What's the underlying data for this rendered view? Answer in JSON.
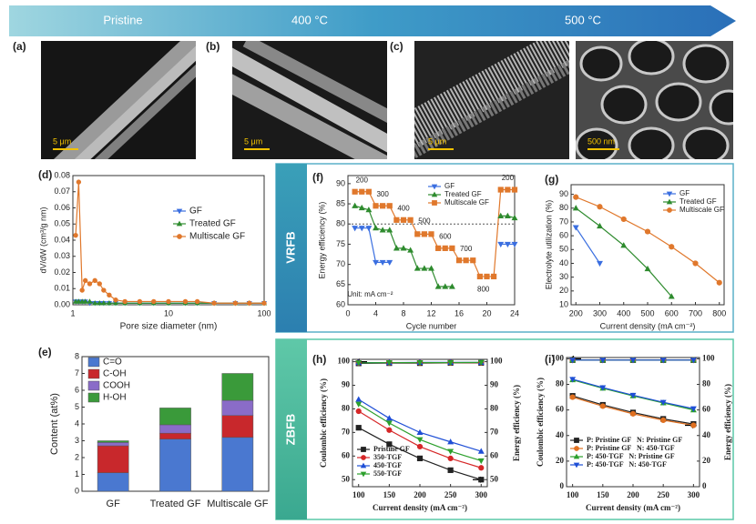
{
  "arrow": {
    "labels": [
      "Pristine",
      "400 °C",
      "500 °C"
    ]
  },
  "sem_images": [
    {
      "panel": "(a)",
      "scale_bar": "5 μm"
    },
    {
      "panel": "(b)",
      "scale_bar": "5 μm"
    },
    {
      "panel": "(c)",
      "scale_bar": "5 μm"
    },
    {
      "scale_bar": "500 nm"
    }
  ],
  "sections": [
    "VRFB",
    "ZBFB"
  ],
  "chart_data": [
    {
      "type": "line",
      "panel": "(d)",
      "xlabel": "Pore size diameter (nm)",
      "ylabel": "dV/dW (cm³/g nm)",
      "xlog": true,
      "x": [
        1.07,
        1.15,
        1.25,
        1.35,
        1.5,
        1.7,
        1.9,
        2.1,
        2.4,
        2.8,
        3.5,
        5,
        7,
        10,
        15,
        20,
        30,
        50,
        70,
        100
      ],
      "xlim": [
        1,
        100
      ],
      "xticks": [
        1,
        10,
        100
      ],
      "ylim": [
        0,
        0.08
      ],
      "yticks": [
        {
          "value": 0,
          "label": "0.00"
        },
        0.01,
        0.02,
        0.03,
        0.04,
        0.05,
        0.06,
        0.07,
        0.08
      ],
      "legend": "upper right",
      "series": [
        {
          "name": "GF",
          "color": "#3b6fe0",
          "marker": "triangle-down",
          "values": [
            0.002,
            0.002,
            0.002,
            0.002,
            0.001,
            0.001,
            0.001,
            0.001,
            0.001,
            0.001,
            0.001,
            0.001,
            0.001,
            0.001,
            0.001,
            0.001,
            0.001,
            0.001,
            0.001,
            0.001
          ]
        },
        {
          "name": "Treated GF",
          "color": "#2e8b2e",
          "marker": "triangle-up",
          "values": [
            0.002,
            0.002,
            0.002,
            0.002,
            0.002,
            0.001,
            0.001,
            0.001,
            0.001,
            0.001,
            0.001,
            0.001,
            0.001,
            0.001,
            0.001,
            0.001,
            0.001,
            0.001,
            0.001,
            0.001
          ]
        },
        {
          "name": "Multiscale GF",
          "color": "#e0782c",
          "marker": "circle",
          "values": [
            0.043,
            0.076,
            0.009,
            0.015,
            0.013,
            0.015,
            0.013,
            0.009,
            0.006,
            0.003,
            0.002,
            0.002,
            0.002,
            0.002,
            0.002,
            0.002,
            0.001,
            0.001,
            0.001,
            0.001
          ]
        }
      ]
    },
    {
      "type": "bar",
      "panel": "(e)",
      "ylabel": "Content (at%)",
      "stacked": true,
      "categories": [
        "GF",
        "Treated GF",
        "Multiscale GF"
      ],
      "ylim": [
        0,
        8
      ],
      "yticks": [
        0,
        1,
        2,
        3,
        4,
        5,
        6,
        7,
        8
      ],
      "legend": "upper left",
      "series": [
        {
          "name": "C=O",
          "color": "#4a78d0",
          "values": [
            1.1,
            3.1,
            3.2
          ]
        },
        {
          "name": "C-OH",
          "color": "#c8282c",
          "values": [
            1.6,
            0.35,
            1.3
          ]
        },
        {
          "name": "COOH",
          "color": "#8a6cc8",
          "values": [
            0.2,
            0.5,
            0.9
          ]
        },
        {
          "name": "H-OH",
          "color": "#3a9a3a",
          "values": [
            0.1,
            1.0,
            1.6
          ]
        }
      ]
    },
    {
      "type": "line",
      "panel": "(f)",
      "xlabel": "Cycle number",
      "ylabel": "Energy efficiency (%)",
      "x": [
        1,
        2,
        3,
        4,
        5,
        6,
        7,
        8,
        9,
        10,
        11,
        12,
        13,
        14,
        15,
        16,
        17,
        18,
        19,
        20,
        21,
        22,
        23,
        24
      ],
      "xlim": [
        0,
        24
      ],
      "xticks": [
        0,
        4,
        8,
        12,
        16,
        20,
        24
      ],
      "ylim": [
        60,
        92
      ],
      "yticks": [
        60,
        65,
        70,
        75,
        80,
        85,
        90
      ],
      "hline": 80,
      "legend": "upper center",
      "annotations": [
        "200",
        "300",
        "400",
        "500",
        "600",
        "700",
        "800",
        "200",
        "Unit: mA cm⁻²"
      ],
      "series": [
        {
          "name": "GF",
          "color": "#3b6fe0",
          "marker": "triangle-down",
          "values": [
            79,
            79,
            79,
            70.5,
            70.5,
            70.5,
            null,
            null,
            null,
            null,
            null,
            null,
            null,
            null,
            null,
            null,
            null,
            null,
            null,
            null,
            null,
            75,
            75,
            75
          ]
        },
        {
          "name": "Treated GF",
          "color": "#2e8b2e",
          "marker": "triangle-up",
          "values": [
            84.5,
            84,
            83.5,
            79,
            78.5,
            78.5,
            74,
            74,
            73.5,
            69,
            69,
            69,
            64.5,
            64.5,
            64.5,
            null,
            null,
            null,
            null,
            null,
            null,
            82,
            82,
            81.5
          ]
        },
        {
          "name": "Multiscale GF",
          "color": "#e0782c",
          "marker": "square",
          "values": [
            88,
            88,
            88,
            84.5,
            84.5,
            84.5,
            81,
            81,
            81,
            77.5,
            77.5,
            77.5,
            74,
            74,
            74,
            71,
            71,
            71,
            67,
            67,
            67,
            88.5,
            88.5,
            88.5
          ]
        }
      ]
    },
    {
      "type": "line",
      "panel": "(g)",
      "xlabel": "Current density (mA cm⁻²)",
      "ylabel": "Electrolyte utilization (%)",
      "x": [
        200,
        300,
        400,
        500,
        600,
        700,
        800
      ],
      "xlim": [
        180,
        820
      ],
      "xticks": [
        200,
        300,
        400,
        500,
        600,
        700,
        800
      ],
      "ylim": [
        10,
        97
      ],
      "yticks": [
        10,
        20,
        30,
        40,
        50,
        60,
        70,
        80,
        90
      ],
      "legend": "upper right",
      "series": [
        {
          "name": "GF",
          "color": "#3b6fe0",
          "marker": "triangle-down",
          "values": [
            66,
            40,
            null,
            null,
            null,
            null,
            null
          ]
        },
        {
          "name": "Treated GF",
          "color": "#2e8b2e",
          "marker": "triangle-up",
          "values": [
            80,
            67,
            53,
            36,
            16,
            null,
            null
          ]
        },
        {
          "name": "Multiscale GF",
          "color": "#e0782c",
          "marker": "circle",
          "values": [
            88,
            81,
            72,
            63,
            52,
            40,
            26
          ]
        }
      ]
    },
    {
      "type": "line",
      "panel": "(h)",
      "xlabel": "Current density (mA cm⁻²)",
      "ylabel": "Coulombic efficiency (%)",
      "y2label": "Energy efficiency (%)",
      "x": [
        100,
        150,
        200,
        250,
        300
      ],
      "xlim": [
        90,
        310
      ],
      "xticks": [
        100,
        150,
        200,
        250,
        300
      ],
      "ylim": [
        47,
        101
      ],
      "yticks": [
        50,
        60,
        70,
        80,
        90,
        100
      ],
      "y2lim": [
        47,
        101
      ],
      "y2ticks": [
        50,
        60,
        70,
        80,
        90,
        100
      ],
      "legend": "lower left",
      "series": [
        {
          "name": "Pristine GF",
          "color": "#222222",
          "marker": "square",
          "values": [
            99.3,
            99.4,
            99.4,
            99.5,
            99.5
          ]
        },
        {
          "name": "350-TGF",
          "color": "#d62728",
          "marker": "circle",
          "values": [
            99.5,
            99.5,
            99.6,
            99.6,
            99.6
          ]
        },
        {
          "name": "450-TGF",
          "color": "#1f4fd6",
          "marker": "triangle-up",
          "values": [
            99.6,
            99.6,
            99.7,
            99.7,
            99.7
          ]
        },
        {
          "name": "550-TGF",
          "color": "#2ca02c",
          "marker": "triangle-down",
          "values": [
            99.5,
            99.6,
            99.6,
            99.6,
            99.7
          ]
        },
        {
          "name": "Pristine GF",
          "color": "#222222",
          "marker": "square",
          "axis": "y2",
          "values": [
            72,
            65,
            59,
            54,
            50
          ]
        },
        {
          "name": "350-TGF",
          "color": "#d62728",
          "marker": "circle",
          "axis": "y2",
          "values": [
            79,
            71,
            64,
            59,
            55
          ]
        },
        {
          "name": "450-TGF",
          "color": "#1f4fd6",
          "marker": "triangle-up",
          "axis": "y2",
          "values": [
            84,
            76,
            70,
            66,
            62
          ]
        },
        {
          "name": "550-TGF",
          "color": "#2ca02c",
          "marker": "triangle-down",
          "axis": "y2",
          "values": [
            82,
            74,
            67,
            62,
            58
          ]
        }
      ]
    },
    {
      "type": "line",
      "panel": "(i)",
      "xlabel": "Current density (mA cm⁻²)",
      "ylabel": "Coulombic efficiency (%)",
      "y2label": "Energy efficiency (%)",
      "x": [
        100,
        150,
        200,
        250,
        300
      ],
      "xlim": [
        90,
        310
      ],
      "xticks": [
        100,
        150,
        200,
        250,
        300
      ],
      "ylim": [
        0,
        101
      ],
      "yticks": [
        0,
        20,
        40,
        60,
        80,
        100
      ],
      "y2lim": [
        0,
        101
      ],
      "y2ticks": [
        0,
        20,
        40,
        60,
        80,
        100
      ],
      "legend": "lower left",
      "series": [
        {
          "name": "P: Pristine GF   N: Pristine GF",
          "color": "#222222",
          "marker": "square",
          "values": [
            99,
            99,
            99,
            99,
            99
          ]
        },
        {
          "name": "P: Pristine GF   N: 450-TGF",
          "color": "#e07020",
          "marker": "circle",
          "values": [
            99,
            99,
            99,
            99,
            99
          ]
        },
        {
          "name": "P: 450-TGF   N: Pristine GF",
          "color": "#2ca02c",
          "marker": "triangle-up",
          "values": [
            99,
            99,
            99,
            99,
            99
          ]
        },
        {
          "name": "P: 450-TGF   N: 450-TGF",
          "color": "#1f4fd6",
          "marker": "triangle-down",
          "values": [
            99,
            99,
            99,
            99,
            99
          ]
        },
        {
          "name": "P: Pristine GF   N: Pristine GF",
          "color": "#222222",
          "marker": "square",
          "axis": "y2",
          "values": [
            71,
            64,
            58,
            53,
            49
          ]
        },
        {
          "name": "P: Pristine GF   N: 450-TGF",
          "color": "#e07020",
          "marker": "circle",
          "axis": "y2",
          "values": [
            70,
            63,
            57,
            52,
            48
          ]
        },
        {
          "name": "P: 450-TGF   N: Pristine GF",
          "color": "#2ca02c",
          "marker": "triangle-up",
          "axis": "y2",
          "values": [
            83.5,
            77,
            71,
            65.5,
            60
          ]
        },
        {
          "name": "P: 450-TGF   N: 450-TGF",
          "color": "#1f4fd6",
          "marker": "triangle-down",
          "axis": "y2",
          "values": [
            84,
            77.5,
            71.5,
            66,
            61
          ]
        }
      ]
    }
  ]
}
